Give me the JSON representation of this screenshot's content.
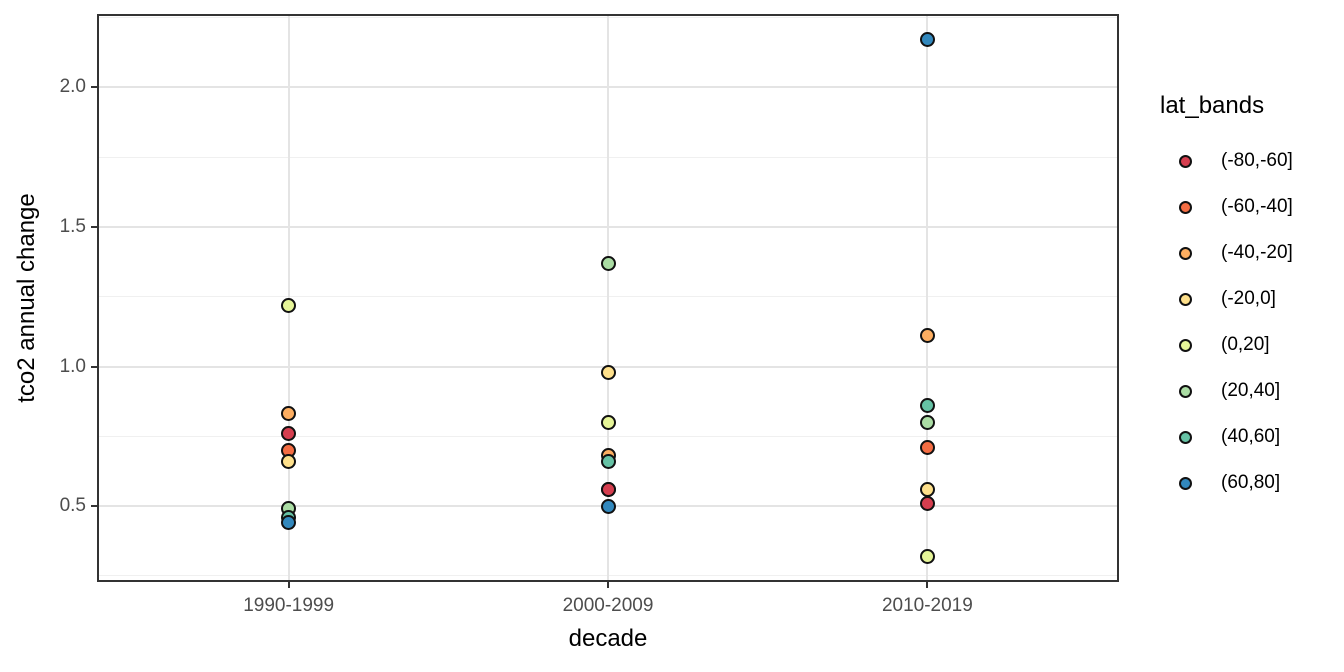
{
  "chart_data": {
    "type": "scatter",
    "title": "",
    "xlabel": "decade",
    "ylabel": "tco2 annual change",
    "categories": [
      "1990-1999",
      "2000-2009",
      "2010-2019"
    ],
    "ylim": [
      0.228,
      2.263
    ],
    "y_ticks": [
      {
        "value": 0.5,
        "label": "0.5"
      },
      {
        "value": 1.0,
        "label": "1.0"
      },
      {
        "value": 1.5,
        "label": "1.5"
      },
      {
        "value": 2.0,
        "label": "2.0"
      }
    ],
    "y_minor_ticks": [
      0.25,
      0.75,
      1.25,
      1.75,
      2.25
    ],
    "grid": {
      "major": true,
      "minor": true
    },
    "point_outline_color": "#111111",
    "legend": {
      "title": "lat_bands",
      "position": "right",
      "entries": [
        {
          "label": "(-80,-60]",
          "color": "#d53e4f"
        },
        {
          "label": "(-60,-40]",
          "color": "#f46d43"
        },
        {
          "label": "(-40,-20]",
          "color": "#fdae61"
        },
        {
          "label": "(-20,0]",
          "color": "#fee08b"
        },
        {
          "label": "(0,20]",
          "color": "#e6f598"
        },
        {
          "label": "(20,40]",
          "color": "#abdda4"
        },
        {
          "label": "(40,60]",
          "color": "#66c2a5"
        },
        {
          "label": "(60,80]",
          "color": "#3288bd"
        }
      ]
    },
    "points": [
      {
        "decade": "1990-1999",
        "lat_band": "(0,20]",
        "value": 1.22
      },
      {
        "decade": "1990-1999",
        "lat_band": "(-40,-20]",
        "value": 0.83
      },
      {
        "decade": "1990-1999",
        "lat_band": "(-80,-60]",
        "value": 0.76
      },
      {
        "decade": "1990-1999",
        "lat_band": "(-60,-40]",
        "value": 0.7
      },
      {
        "decade": "1990-1999",
        "lat_band": "(-20,0]",
        "value": 0.66
      },
      {
        "decade": "1990-1999",
        "lat_band": "(20,40]",
        "value": 0.49
      },
      {
        "decade": "1990-1999",
        "lat_band": "(40,60]",
        "value": 0.46
      },
      {
        "decade": "1990-1999",
        "lat_band": "(60,80]",
        "value": 0.44
      },
      {
        "decade": "2000-2009",
        "lat_band": "(20,40]",
        "value": 1.37
      },
      {
        "decade": "2000-2009",
        "lat_band": "(-20,0]",
        "value": 0.98
      },
      {
        "decade": "2000-2009",
        "lat_band": "(0,20]",
        "value": 0.8
      },
      {
        "decade": "2000-2009",
        "lat_band": "(-40,-20]",
        "value": 0.68
      },
      {
        "decade": "2000-2009",
        "lat_band": "(40,60]",
        "value": 0.66
      },
      {
        "decade": "2000-2009",
        "lat_band": "(-60,-40]",
        "value": 0.56
      },
      {
        "decade": "2000-2009",
        "lat_band": "(-80,-60]",
        "value": 0.56
      },
      {
        "decade": "2000-2009",
        "lat_band": "(60,80]",
        "value": 0.5
      },
      {
        "decade": "2010-2019",
        "lat_band": "(60,80]",
        "value": 2.17
      },
      {
        "decade": "2010-2019",
        "lat_band": "(-40,-20]",
        "value": 1.11
      },
      {
        "decade": "2010-2019",
        "lat_band": "(40,60]",
        "value": 0.86
      },
      {
        "decade": "2010-2019",
        "lat_band": "(20,40]",
        "value": 0.8
      },
      {
        "decade": "2010-2019",
        "lat_band": "(-60,-40]",
        "value": 0.71
      },
      {
        "decade": "2010-2019",
        "lat_band": "(-20,0]",
        "value": 0.56
      },
      {
        "decade": "2010-2019",
        "lat_band": "(-80,-60]",
        "value": 0.51
      },
      {
        "decade": "2010-2019",
        "lat_band": "(0,20]",
        "value": 0.32
      }
    ]
  }
}
